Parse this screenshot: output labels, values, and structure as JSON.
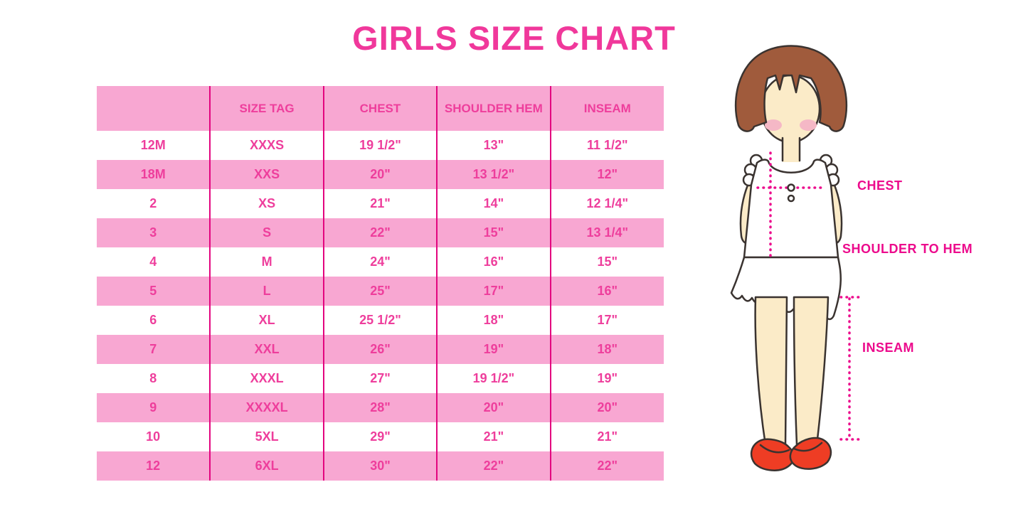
{
  "page": {
    "title": "GIRLS SIZE CHART"
  },
  "colors": {
    "title_pink": "#F0389B",
    "stripe_pink": "#F8A7D2",
    "table_text_pink": "#EE3E9C",
    "divider_magenta": "#E3057F",
    "label_magenta": "#EC0A8C",
    "hair_brown": "#A05B3C",
    "skin_tone": "#FBEBC8",
    "blush_pink": "#F5B8C6",
    "shoe_red": "#EE3D24"
  },
  "chart_data": {
    "type": "table",
    "title": "GIRLS SIZE CHART",
    "columns": [
      "",
      "SIZE TAG",
      "CHEST",
      "SHOULDER HEM",
      "INSEAM"
    ],
    "rows": [
      [
        "12M",
        "XXXS",
        "19 1/2\"",
        "13\"",
        "11 1/2\""
      ],
      [
        "18M",
        "XXS",
        "20\"",
        "13 1/2\"",
        "12\""
      ],
      [
        "2",
        "XS",
        "21\"",
        "14\"",
        "12 1/4\""
      ],
      [
        "3",
        "S",
        "22\"",
        "15\"",
        "13 1/4\""
      ],
      [
        "4",
        "M",
        "24\"",
        "16\"",
        "15\""
      ],
      [
        "5",
        "L",
        "25\"",
        "17\"",
        "16\""
      ],
      [
        "6",
        "XL",
        "25 1/2\"",
        "18\"",
        "17\""
      ],
      [
        "7",
        "XXL",
        "26\"",
        "19\"",
        "18\""
      ],
      [
        "8",
        "XXXL",
        "27\"",
        "19 1/2\"",
        "19\""
      ],
      [
        "9",
        "XXXXL",
        "28\"",
        "20\"",
        "20\""
      ],
      [
        "10",
        "5XL",
        "29\"",
        "21\"",
        "21\""
      ],
      [
        "12",
        "6XL",
        "30\"",
        "22\"",
        "22\""
      ]
    ],
    "layout_hints": {
      "stripe_pattern": "header pink, data rows alternate white/pink starting white",
      "dividers": "vertical magenta lines between columns only"
    }
  },
  "figure": {
    "chest_label": "CHEST",
    "shoulder_to_hem_label": "SHOULDER TO HEM",
    "inseam_label": "INSEAM"
  }
}
